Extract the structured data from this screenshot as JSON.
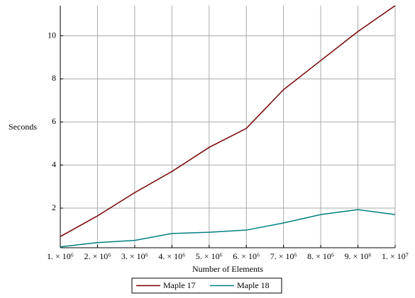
{
  "chart_data": {
    "type": "line",
    "xlabel": "Number of Elements",
    "ylabel": "Seconds",
    "x": [
      1000000,
      2000000,
      3000000,
      4000000,
      5000000,
      6000000,
      7000000,
      8000000,
      9000000,
      10000000
    ],
    "series": [
      {
        "name": "Maple 17",
        "color": "#780000",
        "values": [
          0.68,
          1.64,
          2.72,
          3.7,
          4.82,
          5.7,
          7.5,
          8.85,
          10.2,
          11.4
        ]
      },
      {
        "name": "Maple 18",
        "color": "#008080",
        "values": [
          0.2,
          0.4,
          0.5,
          0.82,
          0.88,
          0.98,
          1.31,
          1.7,
          1.93,
          1.7
        ]
      }
    ],
    "xlim": [
      1000000,
      10000000
    ],
    "xticks": [
      {
        "value": 1000000,
        "label": "1. × 10⁶"
      },
      {
        "value": 2000000,
        "label": "2. × 10⁶"
      },
      {
        "value": 3000000,
        "label": "3. × 10⁶"
      },
      {
        "value": 4000000,
        "label": "4. × 10⁶"
      },
      {
        "value": 5000000,
        "label": "5. × 10⁶"
      },
      {
        "value": 6000000,
        "label": "6. × 10⁶"
      },
      {
        "value": 7000000,
        "label": "7. × 10⁶"
      },
      {
        "value": 8000000,
        "label": "8. × 10⁶"
      },
      {
        "value": 9000000,
        "label": "9. × 10⁶"
      },
      {
        "value": 10000000,
        "label": "1. × 10⁷"
      }
    ],
    "ylim": [
      0.16,
      11.4
    ],
    "yticks": [
      2,
      4,
      6,
      8,
      10
    ],
    "grid": true
  }
}
